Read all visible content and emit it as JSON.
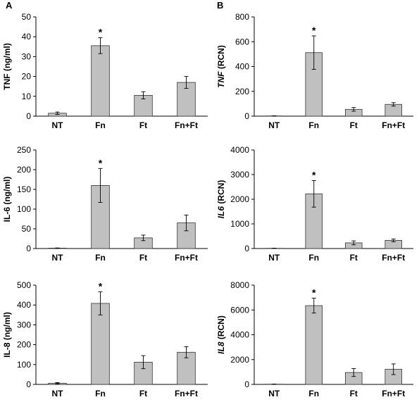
{
  "panel_labels": {
    "a": "A",
    "b": "B"
  },
  "colors": {
    "bar_fill": "#c0c0c0",
    "bar_stroke": "#333333",
    "axis": "#000000"
  },
  "chart_data": [
    {
      "type": "bar",
      "id": "a1",
      "panel": "A",
      "title": "",
      "xlabel": "",
      "ylabel": "TNF (ng/ml)",
      "ylabel_parts": [
        {
          "text": "TNF",
          "italic": false
        },
        {
          "text": " (ng/ml)",
          "italic": false
        }
      ],
      "categories": [
        "NT",
        "Fn",
        "Ft",
        "Fn+Ft"
      ],
      "values": [
        1.5,
        35.5,
        10.5,
        17
      ],
      "errors": [
        0.6,
        4,
        1.8,
        3
      ],
      "significance": [
        "",
        "*",
        "",
        ""
      ],
      "ylim": [
        0,
        50
      ],
      "yticks": [
        0,
        10,
        20,
        30,
        40,
        50
      ],
      "grid": false
    },
    {
      "type": "bar",
      "id": "b1",
      "panel": "B",
      "title": "",
      "xlabel": "",
      "ylabel": "TNF (RCN)",
      "ylabel_parts": [
        {
          "text": "TNF",
          "italic": true
        },
        {
          "text": " (RCN)",
          "italic": false
        }
      ],
      "categories": [
        "NT",
        "Fn",
        "Ft",
        "Fn+Ft"
      ],
      "values": [
        2,
        512,
        55,
        95
      ],
      "errors": [
        1,
        135,
        15,
        14
      ],
      "significance": [
        "",
        "*",
        "",
        ""
      ],
      "ylim": [
        0,
        800
      ],
      "yticks": [
        0,
        200,
        400,
        600,
        800
      ],
      "grid": false
    },
    {
      "type": "bar",
      "id": "a2",
      "panel": "A",
      "title": "",
      "xlabel": "",
      "ylabel": "IL-6 (ng/ml)",
      "ylabel_parts": [
        {
          "text": "IL-6",
          "italic": false
        },
        {
          "text": " (ng/ml)",
          "italic": false
        }
      ],
      "categories": [
        "NT",
        "Fn",
        "Ft",
        "Fn+Ft"
      ],
      "values": [
        1,
        160,
        27,
        65
      ],
      "errors": [
        0.5,
        43,
        7,
        20
      ],
      "significance": [
        "",
        "*",
        "",
        ""
      ],
      "ylim": [
        0,
        250
      ],
      "yticks": [
        0,
        50,
        100,
        150,
        200,
        250
      ],
      "grid": false
    },
    {
      "type": "bar",
      "id": "b2",
      "panel": "B",
      "title": "",
      "xlabel": "",
      "ylabel": "IL6 (RCN)",
      "ylabel_parts": [
        {
          "text": "IL6",
          "italic": true
        },
        {
          "text": " (RCN)",
          "italic": false
        }
      ],
      "categories": [
        "NT",
        "Fn",
        "Ft",
        "Fn+Ft"
      ],
      "values": [
        10,
        2220,
        230,
        330
      ],
      "errors": [
        5,
        540,
        80,
        55
      ],
      "significance": [
        "",
        "*",
        "",
        ""
      ],
      "ylim": [
        0,
        4000
      ],
      "yticks": [
        0,
        1000,
        2000,
        3000,
        4000
      ],
      "grid": false
    },
    {
      "type": "bar",
      "id": "a3",
      "panel": "A",
      "title": "",
      "xlabel": "",
      "ylabel": "IL-8 (ng/ml)",
      "ylabel_parts": [
        {
          "text": "IL-8",
          "italic": false
        },
        {
          "text": " (ng/ml)",
          "italic": false
        }
      ],
      "categories": [
        "NT",
        "Fn",
        "Ft",
        "Fn+Ft"
      ],
      "values": [
        6,
        408,
        112,
        162
      ],
      "errors": [
        3,
        58,
        33,
        28
      ],
      "significance": [
        "",
        "*",
        "",
        ""
      ],
      "ylim": [
        0,
        500
      ],
      "yticks": [
        0,
        100,
        200,
        300,
        400,
        500
      ],
      "grid": false
    },
    {
      "type": "bar",
      "id": "b3",
      "panel": "B",
      "title": "",
      "xlabel": "",
      "ylabel": "IL8 (RCN)",
      "ylabel_parts": [
        {
          "text": "IL8",
          "italic": true
        },
        {
          "text": " (RCN)",
          "italic": false
        }
      ],
      "categories": [
        "NT",
        "Fn",
        "Ft",
        "Fn+Ft"
      ],
      "values": [
        20,
        6350,
        960,
        1220
      ],
      "errors": [
        10,
        600,
        320,
        430
      ],
      "significance": [
        "",
        "*",
        "",
        ""
      ],
      "ylim": [
        0,
        8000
      ],
      "yticks": [
        0,
        2000,
        4000,
        6000,
        8000
      ],
      "grid": false
    }
  ]
}
